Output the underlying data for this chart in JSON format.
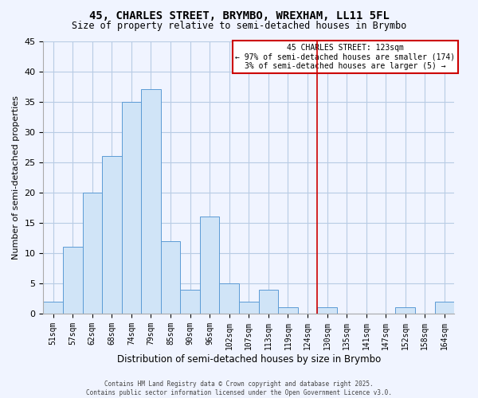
{
  "title": "45, CHARLES STREET, BRYMBO, WREXHAM, LL11 5FL",
  "subtitle": "Size of property relative to semi-detached houses in Brymbo",
  "xlabel": "Distribution of semi-detached houses by size in Brymbo",
  "ylabel": "Number of semi-detached properties",
  "bar_labels": [
    "51sqm",
    "57sqm",
    "62sqm",
    "68sqm",
    "74sqm",
    "79sqm",
    "85sqm",
    "90sqm",
    "96sqm",
    "102sqm",
    "107sqm",
    "113sqm",
    "119sqm",
    "124sqm",
    "130sqm",
    "135sqm",
    "141sqm",
    "147sqm",
    "152sqm",
    "158sqm",
    "164sqm"
  ],
  "bar_values": [
    2,
    11,
    20,
    26,
    35,
    37,
    12,
    4,
    16,
    5,
    2,
    4,
    1,
    0,
    1,
    0,
    0,
    0,
    1,
    0,
    2
  ],
  "bar_color": "#d0e4f7",
  "bar_edge_color": "#5b9bd5",
  "background_color": "#f0f4ff",
  "grid_color": "#b8cce4",
  "vline_x": 13.5,
  "vline_color": "#cc0000",
  "annotation_text": "45 CHARLES STREET: 123sqm\n← 97% of semi-detached houses are smaller (174)\n3% of semi-detached houses are larger (5) →",
  "annotation_box_color": "#ffffff",
  "annotation_box_edge_color": "#cc0000",
  "ylim": [
    0,
    45
  ],
  "yticks": [
    0,
    5,
    10,
    15,
    20,
    25,
    30,
    35,
    40,
    45
  ],
  "footer_line1": "Contains HM Land Registry data © Crown copyright and database right 2025.",
  "footer_line2": "Contains public sector information licensed under the Open Government Licence v3.0."
}
